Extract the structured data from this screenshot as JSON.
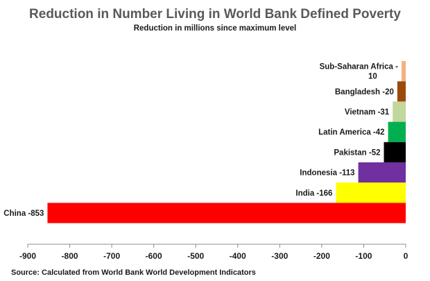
{
  "chart_data": {
    "type": "bar",
    "orientation": "horizontal",
    "title": "Reduction in Number Living in World Bank Defined Poverty",
    "subtitle": "Reduction in millions since maximum level",
    "source": "Source: Calculated from World Bank World Development Indicators",
    "categories": [
      "Sub-Saharan Africa",
      "Bangladesh",
      "Vietnam",
      "Latin America",
      "Pakistan",
      "Indonesia",
      "India",
      "China"
    ],
    "values": [
      -10,
      -20,
      -31,
      -42,
      -52,
      -113,
      -166,
      -853
    ],
    "bar_labels": [
      [
        "Sub-Saharan Africa -",
        "10"
      ],
      [
        "Bangladesh -20"
      ],
      [
        "Vietnam -31"
      ],
      [
        "Latin America -42"
      ],
      [
        "Pakistan -52"
      ],
      [
        "Indonesia -113"
      ],
      [
        "India -166"
      ],
      [
        "China -853"
      ]
    ],
    "colors": [
      "#f4b183",
      "#9c4a0c",
      "#c3d69b",
      "#00b050",
      "#000000",
      "#7030a0",
      "#ffff00",
      "#ff0000"
    ],
    "xlim": [
      -900,
      0
    ],
    "xticks": [
      -900,
      -800,
      -700,
      -600,
      -500,
      -400,
      -300,
      -200,
      -100,
      0
    ],
    "xtick_labels": [
      "-900",
      "-800",
      "-700",
      "-600",
      "-500",
      "-400",
      "-300",
      "-200",
      "-100",
      "0"
    ],
    "grid": false,
    "legend": "none"
  }
}
